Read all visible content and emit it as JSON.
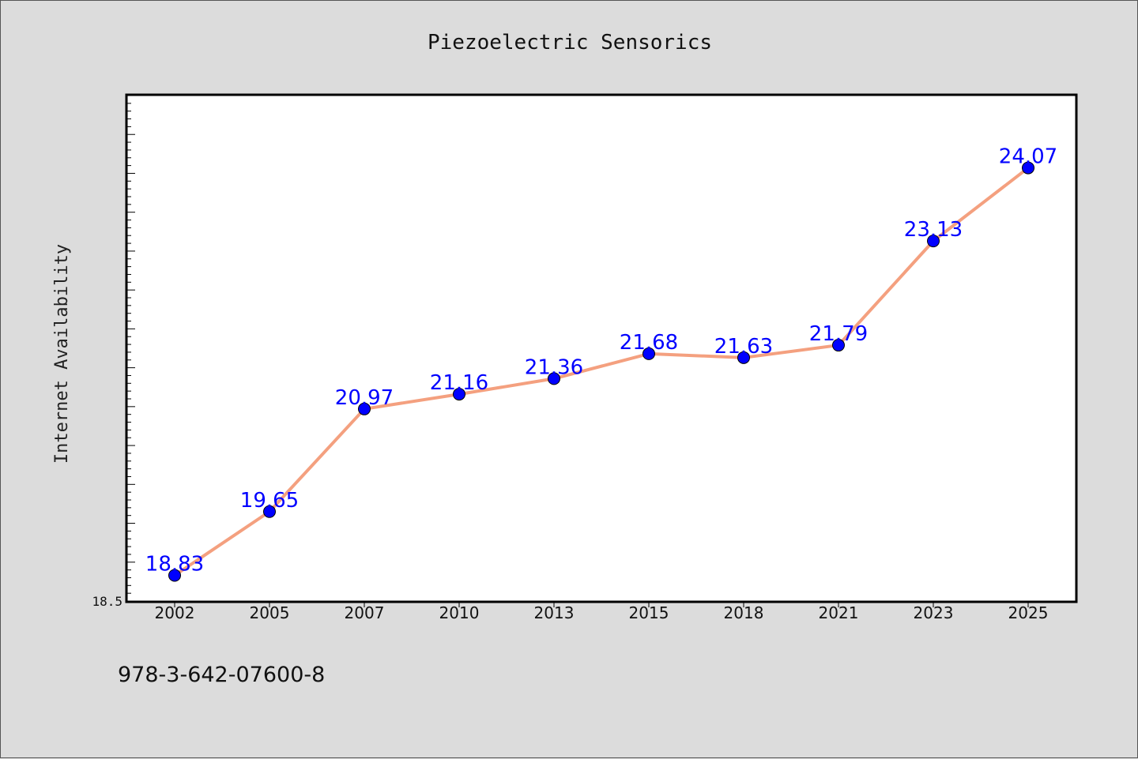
{
  "chart_data": {
    "type": "line",
    "title": "Piezoelectric Sensorics",
    "xlabel": "",
    "ylabel": "Internet Availability",
    "categories": [
      "2002",
      "2005",
      "2007",
      "2010",
      "2013",
      "2015",
      "2018",
      "2021",
      "2023",
      "2025"
    ],
    "series": [
      {
        "values": [
          18.83,
          19.65,
          20.97,
          21.16,
          21.36,
          21.68,
          21.63,
          21.79,
          23.13,
          24.07
        ],
        "labels": [
          "18.83",
          "19.65",
          "20.97",
          "21.16",
          "21.36",
          "21.68",
          "21.63",
          "21.79",
          "23.13",
          "24.07"
        ],
        "color": "#f4a07f",
        "marker_color": "#0000ff"
      }
    ],
    "ylim": [
      18.5,
      25.0
    ],
    "y_tick_labels": [
      {
        "value": 18.5,
        "label": "18.5"
      }
    ],
    "grid": false,
    "legend": "none"
  },
  "footer": {
    "isbn": "978-3-642-07600-8"
  }
}
